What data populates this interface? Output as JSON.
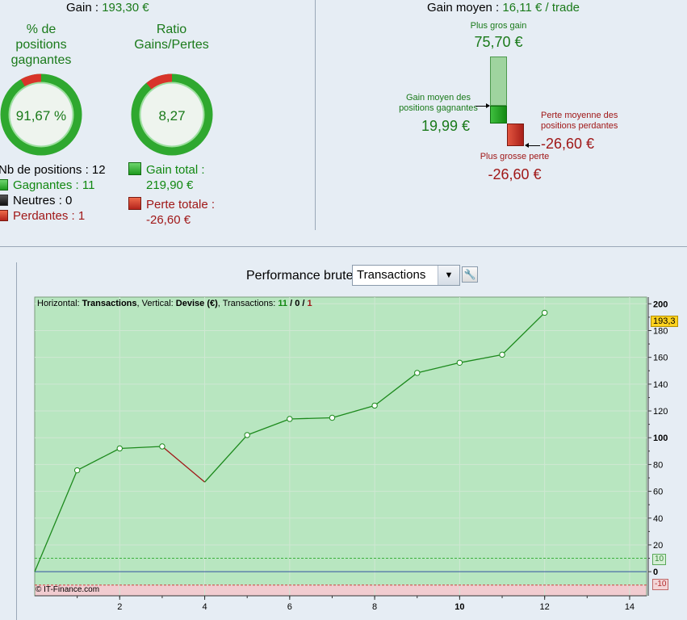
{
  "summary": {
    "gain_label": "Gain : ",
    "gain_value": "193,30 €",
    "pct_caption_1": "% de",
    "pct_caption_2": "positions",
    "pct_caption_3": "gagnantes",
    "ratio_caption_1": "Ratio",
    "ratio_caption_2": "Gains/Pertes",
    "pct_value": "91,67 %",
    "pct_fraction": 0.9167,
    "ratio_value": "8,27",
    "ratio_fraction": 0.892,
    "nb_positions": "Nb de positions : 12",
    "gagnantes": "Gagnantes : 11",
    "neutres": "Neutres : 0",
    "perdantes": "Perdantes : 1",
    "gain_total_label": "Gain total :",
    "gain_total_value": "219,90 €",
    "perte_totale_label": "Perte totale :",
    "perte_totale_value": "-26,60 €"
  },
  "average": {
    "title_label": "Gain moyen : ",
    "title_value": "16,11 € / trade",
    "plus_gros_gain_label": "Plus gros gain",
    "plus_gros_gain_value": "75,70 €",
    "gain_moyen_label_1": "Gain moyen des",
    "gain_moyen_label_2": "positions gagnantes",
    "gain_moyen_value": "19,99 €",
    "perte_moyenne_label_1": "Perte moyenne des",
    "perte_moyenne_label_2": "positions perdantes",
    "perte_moyenne_value": "-26,60 €",
    "plus_grosse_perte_label": "Plus grosse perte",
    "plus_grosse_perte_value": "-26,60 €"
  },
  "performance": {
    "title": "Performance brute",
    "selected_option": "Transactions",
    "info_h": "Horizontal: ",
    "info_h_val": "Transactions",
    "info_v": ", Vertical: ",
    "info_v_val": "Devise (€)",
    "info_t": ", Transactions: ",
    "info_t_win": "11",
    "info_t_sep1": " / ",
    "info_t_neu": "0",
    "info_t_sep2": " / ",
    "info_t_los": "1",
    "copyright": "© IT-Finance.com",
    "last_value_flag": "193,3",
    "upper_band_flag": "10",
    "lower_band_flag": "-10"
  },
  "chart_data": {
    "type": "line",
    "x": [
      0,
      1,
      2,
      3,
      4,
      5,
      6,
      7,
      8,
      9,
      10,
      11,
      12
    ],
    "y": [
      0,
      75.7,
      92,
      93.5,
      66.9,
      102,
      114,
      114.9,
      124,
      148.4,
      156,
      162,
      193.3
    ],
    "losing_segments": [
      [
        3,
        4
      ]
    ],
    "xlim": [
      0,
      14.4
    ],
    "ylim": [
      -18,
      205
    ],
    "x_ticks": [
      "2",
      "4",
      "6",
      "8",
      "10",
      "12",
      "14"
    ],
    "y_ticks": [
      "200",
      "180",
      "160",
      "140",
      "120",
      "100",
      "80",
      "60",
      "40",
      "20",
      "0"
    ],
    "y_ticks_bold": [
      "200",
      "100",
      "0"
    ],
    "x_ticks_bold": [
      "10"
    ],
    "bands": {
      "upper": 10,
      "lower": -10
    },
    "colors": {
      "positive_area": "#b8e6c0",
      "negative_area": "#f1ccd0",
      "line_up": "#1d8a1d",
      "line_down": "#a01818",
      "zero_line": "#3350a0",
      "band_upper": "#3cb03c",
      "band_lower": "#d04040"
    },
    "grid": true
  },
  "colors": {
    "background": "#e6edf4",
    "green": "#1a7a1a",
    "red": "#a01818"
  }
}
